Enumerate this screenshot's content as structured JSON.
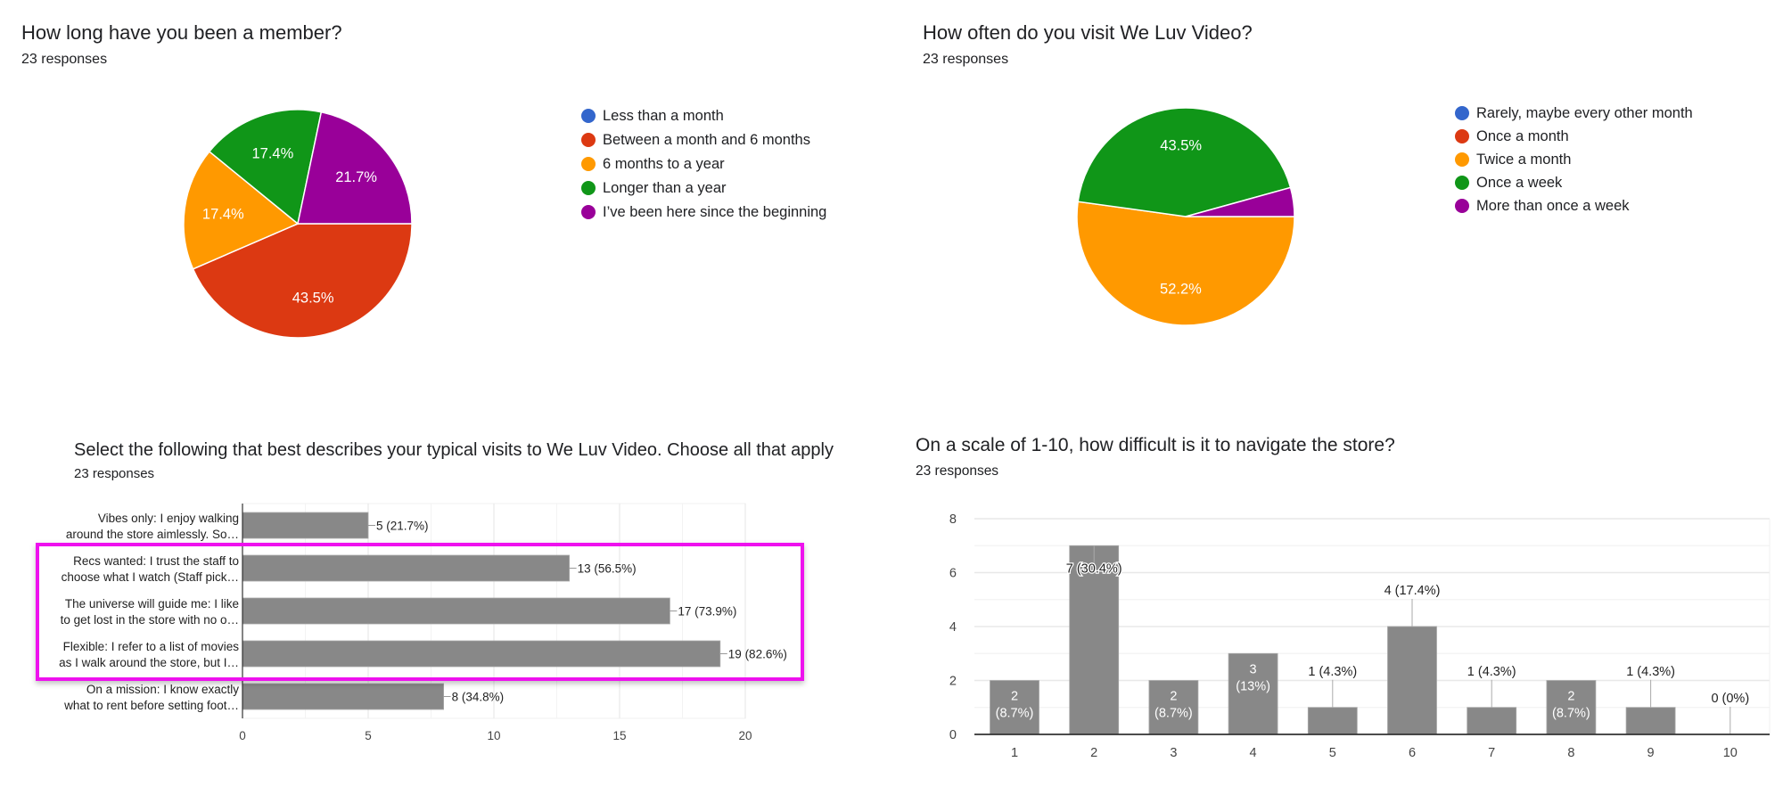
{
  "panels": {
    "membership": {
      "title": "How long have you been a member?",
      "responses": "23 responses",
      "legend": [
        {
          "label": "Less than a month",
          "color": "#3366cc"
        },
        {
          "label": "Between a month and 6 months",
          "color": "#dc3912"
        },
        {
          "label": "6 months to a year",
          "color": "#ff9900"
        },
        {
          "label": "Longer than a year",
          "color": "#109618"
        },
        {
          "label": "I’ve been here since the beginning",
          "color": "#990099"
        }
      ]
    },
    "visit_frequency": {
      "title": "How often do you visit We Luv Video?",
      "responses": "23 responses",
      "legend": [
        {
          "label": "Rarely, maybe every other month",
          "color": "#3366cc"
        },
        {
          "label": "Once a month",
          "color": "#dc3912"
        },
        {
          "label": "Twice a month",
          "color": "#ff9900"
        },
        {
          "label": "Once a week",
          "color": "#109618"
        },
        {
          "label": "More than once a week",
          "color": "#990099"
        }
      ]
    },
    "visit_type": {
      "title": "Select the following that best describes your typical visits to We Luv Video. Choose all that apply",
      "responses": "23 responses",
      "highlight_color": "#ee11ee"
    },
    "navigation_difficulty": {
      "title": "On a scale of 1-10, how difficult is it to navigate the store?",
      "responses": "23 responses"
    }
  },
  "chart_data": [
    {
      "type": "pie",
      "title": "How long have you been a member?",
      "subtitle": "23 responses",
      "categories": [
        "Less than a month",
        "Between a month and 6 months",
        "6 months to a year",
        "Longer than a year",
        "I’ve been here since the beginning"
      ],
      "values": [
        0,
        43.5,
        17.4,
        17.4,
        21.7
      ],
      "labels": [
        "",
        "43.5%",
        "17.4%",
        "17.4%",
        "21.7%"
      ],
      "colors": [
        "#3366cc",
        "#dc3912",
        "#ff9900",
        "#109618",
        "#990099"
      ],
      "legend_position": "right"
    },
    {
      "type": "pie",
      "title": "How often do you visit We Luv Video?",
      "subtitle": "23 responses",
      "categories": [
        "Rarely, maybe every other month",
        "Once a month",
        "Twice a month",
        "Once a week",
        "More than once a week"
      ],
      "values": [
        0,
        0,
        52.2,
        43.5,
        4.3
      ],
      "labels": [
        "",
        "",
        "52.2%",
        "43.5%",
        ""
      ],
      "colors": [
        "#3366cc",
        "#dc3912",
        "#ff9900",
        "#109618",
        "#990099"
      ],
      "legend_position": "right"
    },
    {
      "type": "bar",
      "orientation": "horizontal",
      "title": "Select the following that best describes your typical visits to We Luv Video. Choose all that apply",
      "subtitle": "23 responses",
      "categories": [
        [
          "Vibes only: I enjoy walking",
          "around the store aimlessly. So…"
        ],
        [
          "Recs wanted: I trust the staff to",
          "choose what I watch (Staff pick…"
        ],
        [
          "The universe will guide me: I like",
          "to get lost in the store with no o…"
        ],
        [
          "Flexible: I refer to a list of movies",
          "as I walk around the store, but I…"
        ],
        [
          "On a mission: I know exactly",
          "what to rent before setting foot…"
        ]
      ],
      "values": [
        5,
        13,
        17,
        19,
        8
      ],
      "data_labels": [
        "5 (21.7%)",
        "13 (56.5%)",
        "17 (73.9%)",
        "19 (82.6%)",
        "8 (34.8%)"
      ],
      "xticks": [
        "0",
        "5",
        "10",
        "15",
        "20"
      ],
      "xlim": [
        0,
        20
      ],
      "grid": true,
      "bar_color": "#888888",
      "annotation": "magenta highlight box around rows 2-4"
    },
    {
      "type": "bar",
      "orientation": "vertical",
      "title": "On a scale of 1-10, how difficult is it to navigate the store?",
      "subtitle": "23 responses",
      "categories": [
        "1",
        "2",
        "3",
        "4",
        "5",
        "6",
        "7",
        "8",
        "9",
        "10"
      ],
      "values": [
        2,
        7,
        2,
        3,
        1,
        4,
        1,
        2,
        1,
        0
      ],
      "data_labels": [
        "2 (8.7%)",
        "7 (30.4%)",
        "2 (8.7%)",
        "3 (13%)",
        "1 (4.3%)",
        "4 (17.4%)",
        "1 (4.3%)",
        "2 (8.7%)",
        "1 (4.3%)",
        "0 (0%)"
      ],
      "yticks": [
        "0",
        "2",
        "4",
        "6",
        "8"
      ],
      "ylim": [
        0,
        8
      ],
      "grid": true,
      "bar_color": "#888888"
    }
  ]
}
